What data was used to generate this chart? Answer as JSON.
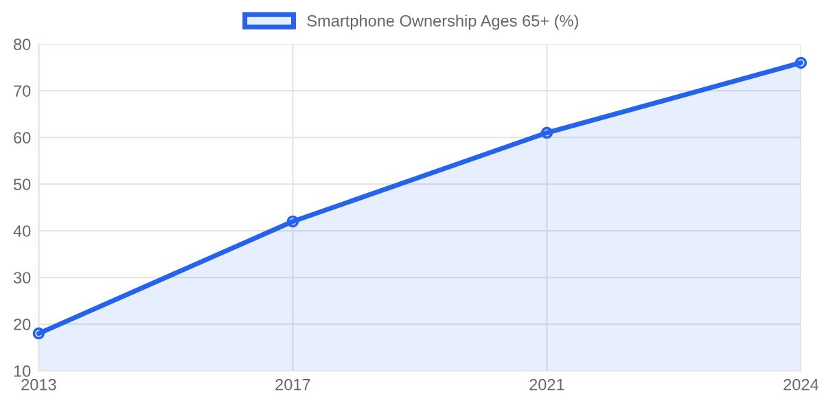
{
  "chart_data": {
    "type": "area",
    "categories": [
      "2013",
      "2017",
      "2021",
      "2024"
    ],
    "series": [
      {
        "name": "Smartphone Ownership Ages 65+ (%)",
        "color": "#2563eb",
        "values": [
          18,
          42,
          61,
          76
        ]
      }
    ],
    "ylim": [
      10,
      80
    ],
    "yticks": [
      10,
      20,
      30,
      40,
      50,
      60,
      70,
      80
    ],
    "grid": true,
    "legend": "top",
    "marker": "circle",
    "line_style": "solid"
  }
}
